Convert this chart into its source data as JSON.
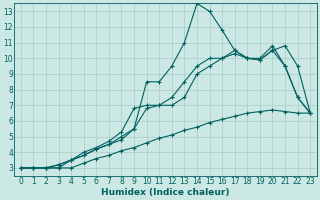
{
  "xlabel": "Humidex (Indice chaleur)",
  "xlim": [
    -0.5,
    23.5
  ],
  "ylim": [
    2.5,
    13.5
  ],
  "xticks": [
    0,
    1,
    2,
    3,
    4,
    5,
    6,
    7,
    8,
    9,
    10,
    11,
    12,
    13,
    14,
    15,
    16,
    17,
    18,
    19,
    20,
    21,
    22,
    23
  ],
  "yticks": [
    3,
    4,
    5,
    6,
    7,
    8,
    9,
    10,
    11,
    12,
    13
  ],
  "bg_color": "#cce8e4",
  "grid_color": "#b0d0cc",
  "line_color": "#006060",
  "line1_x": [
    0,
    1,
    2,
    3,
    4,
    5,
    6,
    7,
    8,
    9,
    10,
    11,
    12,
    13,
    14,
    15,
    16,
    17,
    18,
    19,
    20,
    21,
    22,
    23
  ],
  "line1_y": [
    3,
    3,
    3,
    3,
    3,
    3.3,
    3.6,
    3.8,
    4.1,
    4.3,
    4.6,
    4.9,
    5.1,
    5.4,
    5.6,
    5.9,
    6.1,
    6.3,
    6.5,
    6.6,
    6.7,
    6.6,
    6.5,
    6.5
  ],
  "line2_x": [
    0,
    1,
    2,
    3,
    4,
    5,
    6,
    7,
    8,
    9,
    10,
    11,
    12,
    13,
    14,
    15,
    16,
    17,
    18,
    19,
    20,
    21,
    22,
    23
  ],
  "line2_y": [
    3,
    3,
    3,
    3.2,
    3.5,
    3.8,
    4.2,
    4.5,
    4.8,
    5.5,
    6.8,
    7.0,
    7.0,
    7.5,
    9.0,
    9.5,
    10.0,
    10.3,
    10.0,
    9.9,
    10.5,
    10.8,
    9.5,
    6.5
  ],
  "line3_x": [
    0,
    1,
    2,
    3,
    4,
    5,
    6,
    7,
    8,
    9,
    10,
    11,
    12,
    13,
    14,
    15,
    16,
    17,
    18,
    19,
    20,
    21,
    22,
    23
  ],
  "line3_y": [
    3,
    3,
    3,
    3,
    3.5,
    3.8,
    4.2,
    4.5,
    5.0,
    5.5,
    8.5,
    8.5,
    9.5,
    11.0,
    13.5,
    13.0,
    11.8,
    10.5,
    10.0,
    10.0,
    10.8,
    9.5,
    7.5,
    6.5
  ],
  "line4_x": [
    0,
    1,
    2,
    3,
    4,
    5,
    6,
    7,
    8,
    9,
    10,
    11,
    12,
    13,
    14,
    15,
    16,
    17,
    18,
    19,
    20,
    21,
    22,
    23
  ],
  "line4_y": [
    3,
    3,
    3,
    3.2,
    3.5,
    4.0,
    4.3,
    4.7,
    5.3,
    6.8,
    7.0,
    7.0,
    7.5,
    8.5,
    9.5,
    10.0,
    10.0,
    10.5,
    10.0,
    9.9,
    10.5,
    9.5,
    7.5,
    6.5
  ]
}
